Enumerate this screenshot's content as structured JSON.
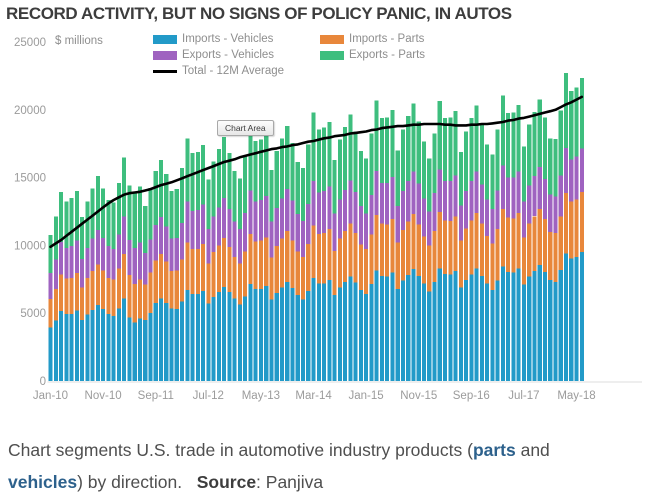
{
  "title": "RECORD ACTIVITY, BUT NO SIGNS OF POLICY PANIC, IN AUTOS",
  "chart": {
    "tooltip": "Chart Area"
  },
  "caption": {
    "text1": "Chart segments U.S. trade in automotive industry products (",
    "link_parts": "parts",
    "text2": " and",
    "link_vehicles": "vehicles",
    "text3": ") by direction.",
    "source_label": "Source",
    "source_rest": ": Panjiva"
  },
  "chart_data": {
    "type": "bar",
    "stacked": true,
    "title": "RECORD ACTIVITY, BUT NO SIGNS OF POLICY PANIC, IN AUTOS",
    "ylabel": "$ millions",
    "ylim": [
      0,
      25000
    ],
    "y_ticks": [
      0,
      5000,
      10000,
      15000,
      20000,
      25000
    ],
    "grid": false,
    "legend_position": "top",
    "x_tick_every": 10,
    "x_tick_labels": [
      "Jan-10",
      "Nov-10",
      "Sep-11",
      "Jul-12",
      "May-13",
      "Mar-14",
      "Jan-15",
      "Nov-15",
      "Sep-16",
      "Jul-17",
      "May-18"
    ],
    "months": [
      "Jan-10",
      "Feb-10",
      "Mar-10",
      "Apr-10",
      "May-10",
      "Jun-10",
      "Jul-10",
      "Aug-10",
      "Sep-10",
      "Oct-10",
      "Nov-10",
      "Dec-10",
      "Jan-11",
      "Feb-11",
      "Mar-11",
      "Apr-11",
      "May-11",
      "Jun-11",
      "Jul-11",
      "Aug-11",
      "Sep-11",
      "Oct-11",
      "Nov-11",
      "Dec-11",
      "Jan-12",
      "Feb-12",
      "Mar-12",
      "Apr-12",
      "May-12",
      "Jun-12",
      "Jul-12",
      "Aug-12",
      "Sep-12",
      "Oct-12",
      "Nov-12",
      "Dec-12",
      "Jan-13",
      "Feb-13",
      "Mar-13",
      "Apr-13",
      "May-13",
      "Jun-13",
      "Jul-13",
      "Aug-13",
      "Sep-13",
      "Oct-13",
      "Nov-13",
      "Dec-13",
      "Jan-14",
      "Feb-14",
      "Mar-14",
      "Apr-14",
      "May-14",
      "Jun-14",
      "Jul-14",
      "Aug-14",
      "Sep-14",
      "Oct-14",
      "Nov-14",
      "Dec-14",
      "Jan-15",
      "Feb-15",
      "Mar-15",
      "Apr-15",
      "May-15",
      "Jun-15",
      "Jul-15",
      "Aug-15",
      "Sep-15",
      "Oct-15",
      "Nov-15",
      "Dec-15",
      "Jan-16",
      "Feb-16",
      "Mar-16",
      "Apr-16",
      "May-16",
      "Jun-16",
      "Jul-16",
      "Aug-16",
      "Sep-16",
      "Oct-16",
      "Nov-16",
      "Dec-16",
      "Jan-17",
      "Feb-17",
      "Mar-17",
      "Apr-17",
      "May-17",
      "Jun-17",
      "Jul-17",
      "Aug-17",
      "Sep-17",
      "Oct-17",
      "Nov-17",
      "Dec-17",
      "Jan-18",
      "Feb-18",
      "Mar-18",
      "Apr-18",
      "May-18",
      "Jun-18"
    ],
    "series": [
      {
        "name": "Imports - Vehicles",
        "color": "#229AC8",
        "values": [
          3950,
          4450,
          5150,
          4950,
          4950,
          5200,
          4500,
          4900,
          5250,
          5600,
          5300,
          4950,
          4800,
          5350,
          6100,
          4700,
          4300,
          4600,
          4500,
          5000,
          5750,
          6100,
          5750,
          5350,
          5300,
          5850,
          6700,
          6400,
          6400,
          6650,
          5700,
          6200,
          6550,
          6950,
          6550,
          6100,
          5650,
          6250,
          7150,
          6800,
          6800,
          7000,
          6000,
          6500,
          6900,
          7300,
          6850,
          6350,
          6000,
          6650,
          7600,
          7200,
          7200,
          7450,
          6350,
          6900,
          7300,
          7700,
          7250,
          6700,
          6400,
          7150,
          8150,
          7750,
          7700,
          8000,
          6800,
          7400,
          7800,
          8250,
          7750,
          7200,
          6600,
          7300,
          8300,
          7900,
          7850,
          8100,
          6900,
          7450,
          7850,
          8300,
          7750,
          7200,
          6700,
          7400,
          8450,
          8050,
          8000,
          8300,
          7100,
          7700,
          8100,
          8550,
          8050,
          7450,
          7300,
          8200,
          9400,
          9050,
          9150,
          9500
        ]
      },
      {
        "name": "Imports - Parts",
        "color": "#E8873B",
        "values": [
          2100,
          2350,
          2700,
          2600,
          2650,
          2750,
          2400,
          2700,
          2850,
          3000,
          2850,
          2650,
          2700,
          2950,
          3250,
          3100,
          2850,
          2900,
          2600,
          3000,
          3150,
          3250,
          3050,
          2750,
          2850,
          3100,
          3500,
          3350,
          3350,
          3450,
          2950,
          3300,
          3450,
          3600,
          3350,
          3050,
          3000,
          3300,
          3700,
          3500,
          3550,
          3600,
          3100,
          3450,
          3600,
          3750,
          3500,
          3200,
          3150,
          3450,
          3850,
          3650,
          3700,
          3750,
          3250,
          3600,
          3750,
          3900,
          3650,
          3350,
          3350,
          3650,
          4100,
          3850,
          3850,
          3950,
          3400,
          3750,
          3950,
          4050,
          3800,
          3450,
          3400,
          3750,
          4150,
          3950,
          3950,
          4050,
          3450,
          3800,
          4000,
          4100,
          3850,
          3500,
          3450,
          3800,
          4250,
          4000,
          4000,
          4100,
          3500,
          3900,
          4050,
          4150,
          3900,
          3550,
          3600,
          3950,
          4450,
          4200,
          4250,
          4450
        ]
      },
      {
        "name": "Exports - Vehicles",
        "color": "#9F63C0",
        "values": [
          1900,
          2150,
          2400,
          2250,
          2350,
          2400,
          2100,
          2200,
          2400,
          2550,
          2400,
          2350,
          2250,
          2500,
          2800,
          2600,
          2650,
          2700,
          2350,
          2450,
          2600,
          2750,
          2600,
          2400,
          2400,
          2700,
          3050,
          2800,
          2850,
          2900,
          2550,
          2650,
          2800,
          2950,
          2800,
          2600,
          2550,
          2850,
          3200,
          2950,
          3000,
          3050,
          2650,
          2800,
          2950,
          3100,
          2950,
          2750,
          2650,
          2950,
          3300,
          3050,
          3100,
          3150,
          2750,
          2900,
          3050,
          3200,
          3050,
          2850,
          2600,
          2900,
          3250,
          3000,
          3050,
          3100,
          2700,
          2850,
          3000,
          3150,
          3000,
          2800,
          2500,
          2800,
          3150,
          2900,
          2950,
          3000,
          2600,
          2750,
          2900,
          3050,
          2900,
          2700,
          2550,
          2850,
          3200,
          2950,
          3000,
          3050,
          2650,
          2800,
          2950,
          3100,
          2950,
          2750,
          2700,
          3000,
          3350,
          3100,
          3150,
          3200
        ]
      },
      {
        "name": "Exports - Parts",
        "color": "#3EBE7E",
        "values": [
          2800,
          3200,
          3700,
          3450,
          3550,
          3650,
          3100,
          3450,
          3700,
          3950,
          3650,
          3400,
          3400,
          3800,
          4350,
          4000,
          4050,
          4150,
          3450,
          3800,
          4000,
          4200,
          3850,
          3500,
          3600,
          4050,
          4650,
          4250,
          4300,
          4400,
          3650,
          4050,
          4300,
          4500,
          4100,
          3750,
          3750,
          4200,
          4800,
          4450,
          4450,
          4550,
          3800,
          4200,
          4450,
          4650,
          4250,
          3850,
          3900,
          4400,
          5050,
          4650,
          4700,
          4750,
          3950,
          4400,
          4650,
          4850,
          4450,
          4050,
          4050,
          4550,
          5200,
          4800,
          4850,
          4950,
          4100,
          4550,
          4800,
          5000,
          4600,
          4200,
          3900,
          4400,
          5050,
          4650,
          4700,
          4750,
          3950,
          4400,
          4650,
          4850,
          4450,
          4050,
          4000,
          4500,
          5150,
          4750,
          4800,
          4900,
          4050,
          4500,
          4750,
          4950,
          4550,
          4150,
          4250,
          4800,
          5500,
          5050,
          5100,
          5200
        ]
      }
    ],
    "average": {
      "name": "Total - 12M Average",
      "color": "#000000",
      "values": [
        9900,
        10150,
        10400,
        10700,
        11000,
        11300,
        11600,
        11900,
        12200,
        12500,
        12800,
        13100,
        13350,
        13550,
        13750,
        13850,
        13900,
        13950,
        14050,
        14150,
        14300,
        14450,
        14550,
        14650,
        14800,
        14950,
        15100,
        15250,
        15400,
        15550,
        15700,
        15850,
        16000,
        16150,
        16250,
        16350,
        16500,
        16600,
        16700,
        16800,
        16900,
        17000,
        17100,
        17150,
        17250,
        17300,
        17400,
        17450,
        17550,
        17650,
        17700,
        17800,
        17900,
        17950,
        18050,
        18100,
        18150,
        18250,
        18300,
        18350,
        18400,
        18500,
        18550,
        18650,
        18700,
        18750,
        18800,
        18800,
        18850,
        18900,
        18900,
        18950,
        18950,
        18950,
        18950,
        18900,
        18900,
        18850,
        18850,
        18850,
        18900,
        18900,
        18950,
        18950,
        19000,
        19050,
        19100,
        19200,
        19250,
        19350,
        19400,
        19500,
        19600,
        19700,
        19800,
        19900,
        20000,
        20200,
        20400,
        20550,
        20750,
        20950
      ]
    }
  }
}
